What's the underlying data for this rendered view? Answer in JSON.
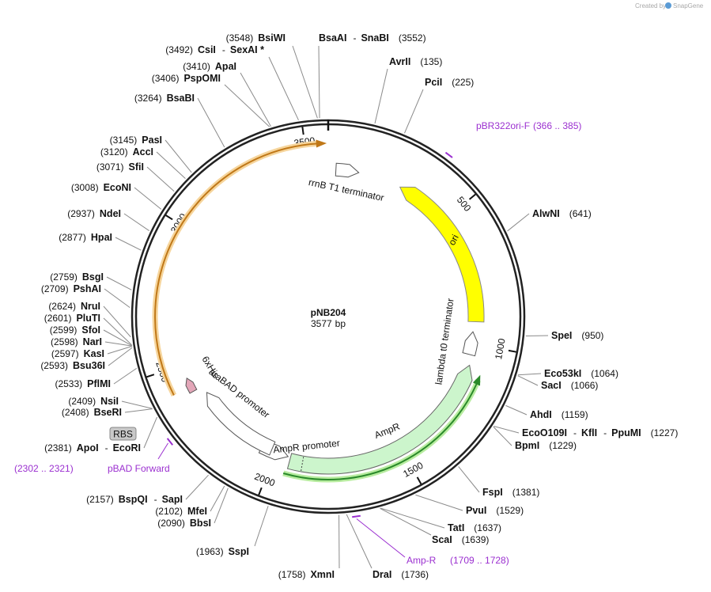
{
  "header": {
    "credit": "Created by",
    "brand": "SnapGene"
  },
  "map": {
    "name": "pNB204",
    "length": 3577,
    "length_unit": "bp",
    "separator": "-",
    "ticks": [
      500,
      1000,
      1500,
      2000,
      2500,
      3000,
      3500
    ]
  },
  "sites": [
    {
      "names": [
        "BsiWI"
      ],
      "position": "(3548)"
    },
    {
      "names": [
        "BsaAI",
        "SnaBI"
      ],
      "position": "(3552)"
    },
    {
      "names": [
        "CsiI",
        "SexAI *"
      ],
      "position": "(3492)"
    },
    {
      "names": [
        "ApaI"
      ],
      "position": "(3410)"
    },
    {
      "names": [
        "PspOMI"
      ],
      "position": "(3406)"
    },
    {
      "names": [
        "AvrII"
      ],
      "position": "(135)"
    },
    {
      "names": [
        "PciI"
      ],
      "position": "(225)"
    },
    {
      "names": [
        "BsaBI"
      ],
      "position": "(3264)"
    },
    {
      "names": [
        "PasI"
      ],
      "position": "(3145)"
    },
    {
      "names": [
        "AccI"
      ],
      "position": "(3120)"
    },
    {
      "names": [
        "SfiI"
      ],
      "position": "(3071)"
    },
    {
      "names": [
        "EcoNI"
      ],
      "position": "(3008)"
    },
    {
      "names": [
        "NdeI"
      ],
      "position": "(2937)"
    },
    {
      "names": [
        "HpaI"
      ],
      "position": "(2877)"
    },
    {
      "names": [
        "AlwNI"
      ],
      "position": "(641)"
    },
    {
      "names": [
        "BsgI"
      ],
      "position": "(2759)"
    },
    {
      "names": [
        "PshAI"
      ],
      "position": "(2709)"
    },
    {
      "names": [
        "NruI"
      ],
      "position": "(2624)"
    },
    {
      "names": [
        "PluTI"
      ],
      "position": "(2601)"
    },
    {
      "names": [
        "SfoI"
      ],
      "position": "(2599)"
    },
    {
      "names": [
        "NarI"
      ],
      "position": "(2598)"
    },
    {
      "names": [
        "KasI"
      ],
      "position": "(2597)"
    },
    {
      "names": [
        "Bsu36I"
      ],
      "position": "(2593)"
    },
    {
      "names": [
        "PflMI"
      ],
      "position": "(2533)"
    },
    {
      "names": [
        "NsiI"
      ],
      "position": "(2409)"
    },
    {
      "names": [
        "BseRI"
      ],
      "position": "(2408)"
    },
    {
      "names": [
        "ApoI",
        "EcoRI"
      ],
      "position": "(2381)"
    },
    {
      "names": [
        "BspQI",
        "SapI"
      ],
      "position": "(2157)"
    },
    {
      "names": [
        "MfeI"
      ],
      "position": "(2102)"
    },
    {
      "names": [
        "BbsI"
      ],
      "position": "(2090)"
    },
    {
      "names": [
        "SspI"
      ],
      "position": "(1963)"
    },
    {
      "names": [
        "XmnI"
      ],
      "position": "(1758)"
    },
    {
      "names": [
        "DraI"
      ],
      "position": "(1736)"
    },
    {
      "names": [
        "ScaI"
      ],
      "position": "(1639)"
    },
    {
      "names": [
        "TatI"
      ],
      "position": "(1637)"
    },
    {
      "names": [
        "PvuI"
      ],
      "position": "(1529)"
    },
    {
      "names": [
        "FspI"
      ],
      "position": "(1381)"
    },
    {
      "names": [
        "BpmI"
      ],
      "position": "(1229)"
    },
    {
      "names": [
        "EcoO109I",
        "KflI",
        "PpuMI"
      ],
      "position": "(1227)"
    },
    {
      "names": [
        "AhdI"
      ],
      "position": "(1159)"
    },
    {
      "names": [
        "SacI"
      ],
      "position": "(1066)"
    },
    {
      "names": [
        "Eco53kI"
      ],
      "position": "(1064)"
    },
    {
      "names": [
        "SpeI"
      ],
      "position": "(950)"
    }
  ],
  "features": [
    "rrnB T1 terminator",
    "ori",
    "lambda t0 terminator",
    "AmpR",
    "AmpR promoter",
    "araBAD promoter",
    "6xHis",
    "RBS"
  ],
  "primers": [
    {
      "name": "pBR322ori-F",
      "range": "(366 .. 385)"
    },
    {
      "name": "pBAD Forward",
      "range": "(2302 .. 2321)"
    },
    {
      "name": "Amp-R",
      "range": "(1709 .. 1728)"
    }
  ]
}
